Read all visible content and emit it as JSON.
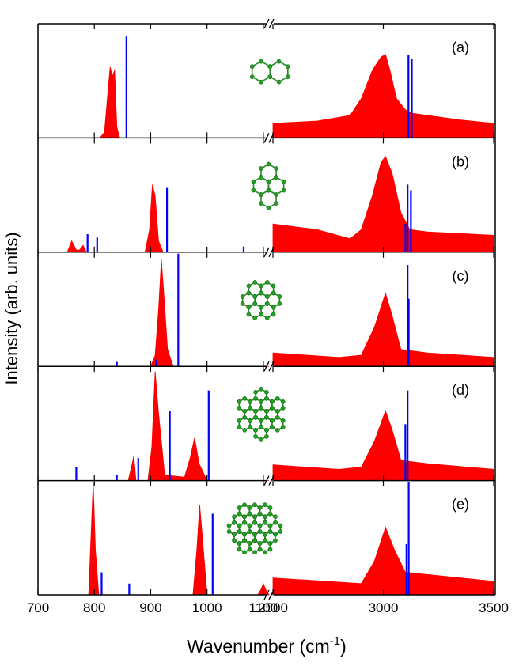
{
  "chart_data": {
    "type": "stacked-spectra",
    "ylabel": "Intensity (arb. units)",
    "xlabel": "Wavenumber (cm",
    "xlabel_exponent": "-1",
    "xlabel_end": ")",
    "ylim": [
      0,
      1
    ],
    "x_segments": [
      {
        "xlim": [
          700,
          1110
        ],
        "xticks": [
          700,
          800,
          900,
          1000,
          1100
        ]
      },
      {
        "xlim": [
          2500,
          3500
        ],
        "xticks": [
          2500,
          3000,
          3500
        ]
      }
    ],
    "panels": [
      {
        "label": "(a)",
        "experiment": {
          "color": "#ff0000",
          "segments": [
            {
              "x": [
                700,
                810,
                818,
                824,
                828,
                832,
                836,
                840,
                845,
                1110
              ],
              "values": [
                0,
                0,
                0.05,
                0.4,
                0.63,
                0.55,
                0.6,
                0.1,
                0,
                0
              ]
            },
            {
              "x": [
                2500,
                2700,
                2850,
                2900,
                2950,
                2990,
                3010,
                3030,
                3060,
                3100,
                3130,
                3200,
                3350,
                3500
              ],
              "values": [
                0.13,
                0.15,
                0.2,
                0.35,
                0.6,
                0.72,
                0.74,
                0.6,
                0.35,
                0.25,
                0.22,
                0.2,
                0.16,
                0.13
              ]
            }
          ]
        },
        "sticks": {
          "color": "#0000ff",
          "x": [
            857,
            3114,
            3129
          ],
          "values": [
            0.9,
            0.74,
            0.7
          ]
        }
      },
      {
        "label": "(b)",
        "experiment": {
          "color": "#ff0000",
          "segments": [
            {
              "x": [
                700,
                752,
                760,
                768,
                774,
                780,
                786,
                890,
                898,
                903,
                908,
                914,
                922,
                1110
              ],
              "values": [
                0,
                0,
                0.1,
                0.02,
                0.02,
                0.06,
                0,
                0,
                0.2,
                0.6,
                0.5,
                0.1,
                0,
                0
              ]
            },
            {
              "x": [
                2500,
                2700,
                2850,
                2900,
                2950,
                2990,
                3010,
                3040,
                3080,
                3120,
                3200,
                3500
              ],
              "values": [
                0.25,
                0.2,
                0.12,
                0.2,
                0.5,
                0.8,
                0.85,
                0.7,
                0.35,
                0.2,
                0.18,
                0.15
              ]
            }
          ]
        },
        "sticks": {
          "color": "#0000ff",
          "x": [
            788,
            805,
            929,
            1065,
            3100,
            3110,
            3125
          ],
          "values": [
            0.16,
            0.13,
            0.57,
            0.05,
            0.25,
            0.6,
            0.55
          ]
        }
      },
      {
        "label": "(c)",
        "experiment": {
          "color": "#ff0000",
          "segments": [
            {
              "x": [
                700,
                900,
                908,
                914,
                919,
                924,
                930,
                940,
                1110
              ],
              "values": [
                0,
                0,
                0.1,
                0.5,
                0.95,
                0.6,
                0.15,
                0,
                0
              ]
            },
            {
              "x": [
                2500,
                2800,
                2900,
                2960,
                3010,
                3040,
                3080,
                3200,
                3500
              ],
              "values": [
                0.12,
                0.08,
                0.1,
                0.35,
                0.65,
                0.45,
                0.15,
                0.12,
                0.08
              ]
            }
          ]
        },
        "sticks": {
          "color": "#0000ff",
          "x": [
            840,
            910,
            949,
            3110,
            3115
          ],
          "values": [
            0.04,
            0.06,
            1.0,
            0.9,
            0.6
          ]
        }
      },
      {
        "label": "(d)",
        "experiment": {
          "color": "#ff0000",
          "segments": [
            {
              "x": [
                700,
                860,
                866,
                870,
                874,
                895,
                902,
                908,
                914,
                925,
                960,
                970,
                978,
                986,
                1000,
                1110
              ],
              "values": [
                0,
                0,
                0.12,
                0.22,
                0,
                0,
                0.3,
                0.97,
                0.6,
                0.05,
                0.03,
                0.2,
                0.38,
                0.15,
                0,
                0
              ]
            },
            {
              "x": [
                2500,
                2800,
                2900,
                2960,
                3010,
                3040,
                3080,
                3200,
                3500
              ],
              "values": [
                0.14,
                0.1,
                0.12,
                0.35,
                0.62,
                0.45,
                0.18,
                0.15,
                0.1
              ]
            }
          ]
        },
        "sticks": {
          "color": "#0000ff",
          "x": [
            768,
            840,
            878,
            934,
            1003,
            3100,
            3110
          ],
          "values": [
            0.12,
            0.05,
            0.2,
            0.62,
            0.8,
            0.5,
            0.8
          ]
        }
      },
      {
        "label": "(e)",
        "experiment": {
          "color": "#ff0000",
          "segments": [
            {
              "x": [
                700,
                790,
                794,
                798,
                802,
                808,
                975,
                982,
                987,
                992,
                1000,
                1090,
                1096,
                1100,
                1104,
                1110
              ],
              "values": [
                0,
                0,
                0.5,
                1.0,
                0.4,
                0,
                0,
                0.4,
                0.8,
                0.5,
                0,
                0,
                0.05,
                0.1,
                0.05,
                0
              ]
            },
            {
              "x": [
                2500,
                2900,
                2960,
                3010,
                3050,
                3100,
                3500
              ],
              "values": [
                0.15,
                0.1,
                0.3,
                0.6,
                0.4,
                0.2,
                0.12
              ]
            }
          ]
        },
        "sticks": {
          "color": "#0000ff",
          "x": [
            813,
            862,
            1010,
            3105,
            3115
          ],
          "values": [
            0.2,
            0.1,
            0.72,
            0.45,
            1.0
          ]
        }
      }
    ]
  }
}
